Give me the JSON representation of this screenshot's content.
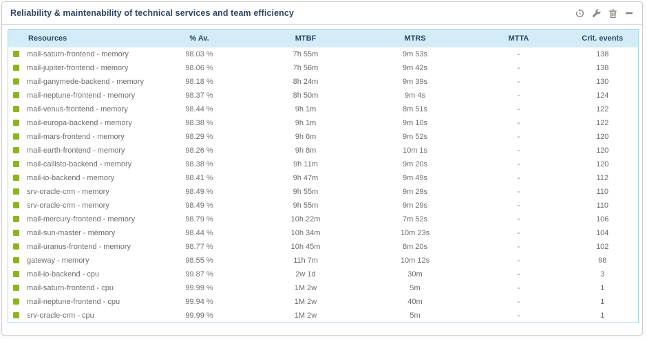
{
  "widget": {
    "title": "Reliability & maintenability of technical services and team efficiency",
    "toolbar_icons": [
      "refresh-icon",
      "wrench-icon",
      "trash-icon",
      "minimize-icon"
    ]
  },
  "table": {
    "columns": [
      "Resources",
      "% Av.",
      "MTBF",
      "MTRS",
      "MTTA",
      "Crit. events"
    ],
    "rows": [
      {
        "resource": "mail-saturn-frontend - memory",
        "availability": "98.03 %",
        "mtbf": "7h 55m",
        "mtrs": "9m 53s",
        "mtta": "-",
        "crit_events": "138"
      },
      {
        "resource": "mail-jupiter-frontend - memory",
        "availability": "98.06 %",
        "mtbf": "7h 56m",
        "mtrs": "9m 42s",
        "mtta": "-",
        "crit_events": "138"
      },
      {
        "resource": "mail-ganymede-backend - memory",
        "availability": "98.18 %",
        "mtbf": "8h 24m",
        "mtrs": "9m 39s",
        "mtta": "-",
        "crit_events": "130"
      },
      {
        "resource": "mail-neptune-frontend - memory",
        "availability": "98.37 %",
        "mtbf": "8h 50m",
        "mtrs": "9m 4s",
        "mtta": "-",
        "crit_events": "124"
      },
      {
        "resource": "mail-venus-frontend - memory",
        "availability": "98.44 %",
        "mtbf": "9h 1m",
        "mtrs": "8m 51s",
        "mtta": "-",
        "crit_events": "122"
      },
      {
        "resource": "mail-europa-backend - memory",
        "availability": "98.38 %",
        "mtbf": "9h 1m",
        "mtrs": "9m 10s",
        "mtta": "-",
        "crit_events": "122"
      },
      {
        "resource": "mail-mars-frontend - memory",
        "availability": "98.29 %",
        "mtbf": "9h 6m",
        "mtrs": "9m 52s",
        "mtta": "-",
        "crit_events": "120"
      },
      {
        "resource": "mail-earth-frontend - memory",
        "availability": "98.26 %",
        "mtbf": "9h 8m",
        "mtrs": "10m 1s",
        "mtta": "-",
        "crit_events": "120"
      },
      {
        "resource": "mail-callisto-backend - memory",
        "availability": "98.38 %",
        "mtbf": "9h 11m",
        "mtrs": "9m 20s",
        "mtta": "-",
        "crit_events": "120"
      },
      {
        "resource": "mail-io-backend - memory",
        "availability": "98.41 %",
        "mtbf": "9h 47m",
        "mtrs": "9m 49s",
        "mtta": "-",
        "crit_events": "112"
      },
      {
        "resource": "srv-oracle-crm - memory",
        "availability": "98.49 %",
        "mtbf": "9h 55m",
        "mtrs": "9m 29s",
        "mtta": "-",
        "crit_events": "110"
      },
      {
        "resource": "srv-oracle-crm - memory",
        "availability": "98.49 %",
        "mtbf": "9h 55m",
        "mtrs": "9m 29s",
        "mtta": "-",
        "crit_events": "110"
      },
      {
        "resource": "mail-mercury-frontend - memory",
        "availability": "98.79 %",
        "mtbf": "10h 22m",
        "mtrs": "7m 52s",
        "mtta": "-",
        "crit_events": "106"
      },
      {
        "resource": "mail-sun-master - memory",
        "availability": "98.44 %",
        "mtbf": "10h 34m",
        "mtrs": "10m 23s",
        "mtta": "-",
        "crit_events": "104"
      },
      {
        "resource": "mail-uranus-frontend - memory",
        "availability": "98.77 %",
        "mtbf": "10h 45m",
        "mtrs": "8m 20s",
        "mtta": "-",
        "crit_events": "102"
      },
      {
        "resource": "gateway - memory",
        "availability": "98.55 %",
        "mtbf": "11h 7m",
        "mtrs": "10m 12s",
        "mtta": "-",
        "crit_events": "98"
      },
      {
        "resource": "mail-io-backend - cpu",
        "availability": "99.87 %",
        "mtbf": "2w 1d",
        "mtrs": "30m",
        "mtta": "-",
        "crit_events": "3"
      },
      {
        "resource": "mail-saturn-frontend - cpu",
        "availability": "99.99 %",
        "mtbf": "1M 2w",
        "mtrs": "5m",
        "mtta": "-",
        "crit_events": "1"
      },
      {
        "resource": "mail-neptune-frontend - cpu",
        "availability": "99.94 %",
        "mtbf": "1M 2w",
        "mtrs": "40m",
        "mtta": "-",
        "crit_events": "1"
      },
      {
        "resource": "srv-oracle-crm - cpu",
        "availability": "99.99 %",
        "mtbf": "1M 2w",
        "mtrs": "5m",
        "mtta": "-",
        "crit_events": "1"
      }
    ]
  },
  "colors": {
    "status_ok": "#8bb421",
    "header_bg": "#d3ecf8",
    "table_border": "#aad7ea",
    "title_color": "#2e4560"
  }
}
